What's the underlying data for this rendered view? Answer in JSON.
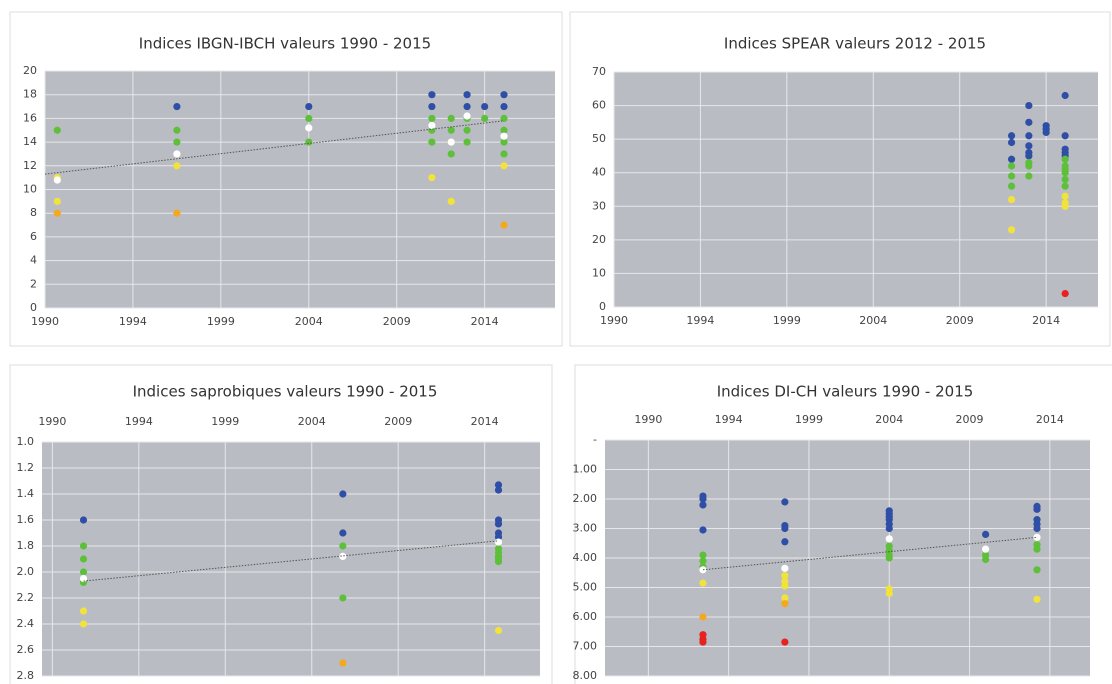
{
  "chart_data": [
    {
      "type": "scatter",
      "title": "Indices IBGN-IBCH valeurs 1990 - 2015",
      "xlim": [
        1990,
        2019
      ],
      "xticks": [
        1990,
        {
          "value": 1995,
          "label": "1994"
        },
        {
          "value": 2000,
          "label": "1999"
        },
        {
          "value": 2005,
          "label": "2004"
        },
        {
          "value": 2010,
          "label": "2009"
        },
        {
          "value": 2015,
          "label": "2014"
        }
      ],
      "ylim": [
        0,
        20
      ],
      "yticks": [
        0,
        2,
        4,
        6,
        8,
        10,
        12,
        14,
        16,
        18,
        20
      ],
      "y_reversed": false,
      "x_axis": "bottom",
      "grid": true,
      "series": [
        {
          "color": "#2f4ea6",
          "x": [
            1997.5,
            2005,
            2012,
            2012,
            2014,
            2014,
            2015,
            2016.1,
            2016.1
          ],
          "values": [
            17,
            17,
            18,
            17,
            18,
            17,
            17,
            18,
            17
          ]
        },
        {
          "color": "#5ec03a",
          "x": [
            1990.7,
            1997.5,
            1997.5,
            2005,
            2005,
            2012,
            2012,
            2012,
            2013.1,
            2013.1,
            2013.1,
            2014,
            2014,
            2014,
            2015,
            2016.1,
            2016.1,
            2016.1,
            2016.1
          ],
          "values": [
            15,
            15,
            14,
            16,
            14,
            16,
            15,
            14,
            16,
            15,
            13,
            16,
            15,
            14,
            16,
            16,
            15,
            14,
            13
          ]
        },
        {
          "color": "#f2e33c",
          "x": [
            1990.7,
            1990.7,
            1997.5,
            2012,
            2013.1,
            2016.1
          ],
          "values": [
            11,
            9,
            12,
            11,
            9,
            12
          ]
        },
        {
          "color": "#f4a81d",
          "x": [
            1990.7,
            1997.5,
            2016.1
          ],
          "values": [
            8,
            8,
            7
          ]
        },
        {
          "color": "#ffffff",
          "x": [
            1990.7,
            1997.5,
            2005,
            2012,
            2013.1,
            2014,
            2016.1
          ],
          "values": [
            10.8,
            13,
            15.2,
            15.4,
            14,
            16.2,
            14.5
          ]
        },
        {
          "color": "#555555",
          "style": "dotted",
          "x": [
            1990,
            2016.1
          ],
          "values": [
            11.3,
            15.8
          ]
        }
      ]
    },
    {
      "type": "scatter",
      "title": "Indices SPEAR valeurs 2012 - 2015",
      "xlim": [
        1990,
        2018
      ],
      "xticks": [
        1990,
        {
          "value": 1995,
          "label": "1994"
        },
        {
          "value": 2000,
          "label": "1999"
        },
        {
          "value": 2005,
          "label": "2004"
        },
        {
          "value": 2010,
          "label": "2009"
        },
        {
          "value": 2015,
          "label": "2014"
        }
      ],
      "ylim": [
        0,
        70
      ],
      "yticks": [
        0,
        10,
        20,
        30,
        40,
        50,
        60,
        70
      ],
      "y_reversed": false,
      "x_axis": "bottom",
      "grid": true,
      "series": [
        {
          "color": "#2f4ea6",
          "x": [
            2013,
            2013,
            2013,
            2014,
            2014,
            2014,
            2014,
            2014,
            2014,
            2015,
            2015,
            2015,
            2016.1,
            2016.1,
            2016.1,
            2016.1,
            2016.1
          ],
          "values": [
            51,
            49,
            44,
            60,
            55,
            51,
            48,
            46,
            45,
            54,
            53,
            52,
            63,
            51,
            47,
            46,
            45
          ]
        },
        {
          "color": "#5ec03a",
          "x": [
            2013,
            2013,
            2013,
            2014,
            2014,
            2014,
            2016.1,
            2016.1,
            2016.1,
            2016.1,
            2016.1,
            2016.1
          ],
          "values": [
            42,
            39,
            36,
            43,
            42,
            39,
            44,
            42,
            41,
            40,
            38,
            36
          ]
        },
        {
          "color": "#f2e33c",
          "x": [
            2013,
            2013,
            2016.1,
            2016.1,
            2016.1
          ],
          "values": [
            32,
            23,
            33,
            31,
            30
          ]
        },
        {
          "color": "#e8231f",
          "x": [
            2016.1
          ],
          "values": [
            4
          ]
        }
      ]
    },
    {
      "type": "scatter",
      "title": "Indices saprobiques valeurs 1990 - 2015",
      "xlim": [
        1989.4,
        2018.2
      ],
      "xticks": [
        1990,
        {
          "value": 1995,
          "label": "1994"
        },
        {
          "value": 2000,
          "label": "1999"
        },
        {
          "value": 2005,
          "label": "2004"
        },
        {
          "value": 2010,
          "label": "2009"
        },
        {
          "value": 2015,
          "label": "2014"
        }
      ],
      "ylim": [
        1,
        2.8
      ],
      "yticks": [
        {
          "value": 1,
          "label": "1.0"
        },
        1.2,
        1.4,
        1.6,
        1.8,
        {
          "value": 2,
          "label": "2.0"
        },
        2.2,
        2.4,
        2.6,
        2.8
      ],
      "y_reversed": true,
      "x_axis": "top",
      "grid": true,
      "series": [
        {
          "color": "#2f4ea6",
          "x": [
            1991.8,
            2006.8,
            2006.8,
            2015.8,
            2015.8,
            2015.8,
            2015.8,
            2015.8,
            2015.8
          ],
          "values": [
            1.6,
            1.4,
            1.7,
            1.33,
            1.37,
            1.6,
            1.63,
            1.7,
            1.73
          ]
        },
        {
          "color": "#5ec03a",
          "x": [
            1991.8,
            1991.8,
            1991.8,
            1991.8,
            2006.8,
            2006.8,
            2015.8,
            2015.8,
            2015.8,
            2015.8,
            2015.8
          ],
          "values": [
            1.8,
            1.9,
            2.0,
            2.08,
            1.8,
            2.2,
            1.82,
            1.85,
            1.88,
            1.9,
            1.92
          ]
        },
        {
          "color": "#f2e33c",
          "x": [
            1991.8,
            1991.8,
            2015.8
          ],
          "values": [
            2.3,
            2.4,
            2.45
          ]
        },
        {
          "color": "#f4a81d",
          "x": [
            2006.8
          ],
          "values": [
            2.7
          ]
        },
        {
          "color": "#ffffff",
          "x": [
            1991.8,
            2006.8,
            2015.8
          ],
          "values": [
            2.05,
            1.88,
            1.77
          ]
        },
        {
          "color": "#555555",
          "style": "dotted",
          "x": [
            1991.8,
            2015.8
          ],
          "values": [
            2.07,
            1.76
          ]
        }
      ]
    },
    {
      "type": "scatter",
      "title": "Indices DI-CH valeurs 1990 - 2015",
      "xlim": [
        1987.3,
        2017.5
      ],
      "xticks": [
        1990,
        {
          "value": 1995,
          "label": "1994"
        },
        {
          "value": 2000,
          "label": "1999"
        },
        {
          "value": 2005,
          "label": "2004"
        },
        {
          "value": 2010,
          "label": "2009"
        },
        {
          "value": 2015,
          "label": "2014"
        }
      ],
      "ylim": [
        0,
        8
      ],
      "yticks": [
        {
          "value": 0,
          "label": "-"
        },
        {
          "value": 1,
          "label": "1.00"
        },
        {
          "value": 2,
          "label": "2.00"
        },
        {
          "value": 3,
          "label": "3.00"
        },
        {
          "value": 4,
          "label": "4.00"
        },
        {
          "value": 5,
          "label": "5.00"
        },
        {
          "value": 6,
          "label": "6.00"
        },
        {
          "value": 7,
          "label": "7.00"
        },
        {
          "value": 8,
          "label": "8.00"
        }
      ],
      "y_reversed": true,
      "x_axis": "top",
      "grid": true,
      "series": [
        {
          "color": "#2f4ea6",
          "x": [
            1993.4,
            1993.4,
            1993.4,
            1993.4,
            1998.5,
            1998.5,
            1998.5,
            1998.5,
            2005,
            2005,
            2005,
            2005,
            2005,
            2005,
            2011,
            2014.2,
            2014.2,
            2014.2,
            2014.2,
            2014.2
          ],
          "values": [
            1.9,
            2.0,
            2.2,
            3.05,
            2.1,
            2.9,
            3.0,
            3.45,
            2.4,
            2.5,
            2.6,
            2.7,
            2.85,
            3.0,
            3.2,
            2.25,
            2.35,
            2.7,
            2.85,
            3.0
          ]
        },
        {
          "color": "#5ec03a",
          "x": [
            1993.4,
            1993.4,
            1993.4,
            2005,
            2005,
            2005,
            2005,
            2011,
            2011,
            2014.2,
            2014.2,
            2014.2
          ],
          "values": [
            3.9,
            4.1,
            4.3,
            3.6,
            3.75,
            3.9,
            4.0,
            3.9,
            4.05,
            3.55,
            3.7,
            4.4
          ]
        },
        {
          "color": "#f2e33c",
          "x": [
            1993.4,
            1998.5,
            1998.5,
            1998.5,
            1998.5,
            2005,
            2005,
            2014.2
          ],
          "values": [
            4.85,
            4.6,
            4.8,
            4.95,
            5.35,
            5.05,
            5.2,
            5.4
          ]
        },
        {
          "color": "#f4a81d",
          "x": [
            1993.4,
            1998.5
          ],
          "values": [
            6.0,
            5.55
          ]
        },
        {
          "color": "#e8231f",
          "x": [
            1993.4,
            1993.4,
            1993.4,
            1998.5
          ],
          "values": [
            6.6,
            6.75,
            6.85,
            6.85
          ]
        },
        {
          "color": "#ffffff",
          "x": [
            1993.4,
            1998.5,
            2005,
            2011,
            2014.2
          ],
          "values": [
            4.4,
            4.35,
            3.35,
            3.7,
            3.3
          ]
        },
        {
          "color": "#555555",
          "style": "dotted",
          "x": [
            1993.4,
            2014.2
          ],
          "values": [
            4.4,
            3.3
          ]
        }
      ]
    }
  ]
}
